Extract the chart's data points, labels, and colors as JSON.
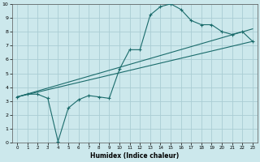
{
  "xlabel": "Humidex (Indice chaleur)",
  "bg_color": "#cce8ec",
  "grid_color": "#aacdd4",
  "line_color": "#1a6b6b",
  "line1_x": [
    0,
    1,
    2,
    3,
    4,
    5,
    6,
    7,
    8,
    9,
    10,
    11,
    12,
    13,
    14,
    15,
    16,
    17,
    18,
    19,
    20,
    21,
    22,
    23
  ],
  "line1_y": [
    3.3,
    3.5,
    3.5,
    3.2,
    0.1,
    2.5,
    3.1,
    3.4,
    3.3,
    3.2,
    5.3,
    6.7,
    6.7,
    9.2,
    9.8,
    10.0,
    9.6,
    8.8,
    8.5,
    8.5,
    8.0,
    7.8,
    8.0,
    7.3
  ],
  "line2_x": [
    0,
    23
  ],
  "line2_y": [
    3.3,
    8.2
  ],
  "line3_x": [
    0,
    23
  ],
  "line3_y": [
    3.3,
    7.3
  ],
  "xlim": [
    -0.5,
    23.5
  ],
  "ylim": [
    0,
    10
  ],
  "xticks": [
    0,
    1,
    2,
    3,
    4,
    5,
    6,
    7,
    8,
    9,
    10,
    11,
    12,
    13,
    14,
    15,
    16,
    17,
    18,
    19,
    20,
    21,
    22,
    23
  ],
  "yticks": [
    0,
    1,
    2,
    3,
    4,
    5,
    6,
    7,
    8,
    9,
    10
  ]
}
